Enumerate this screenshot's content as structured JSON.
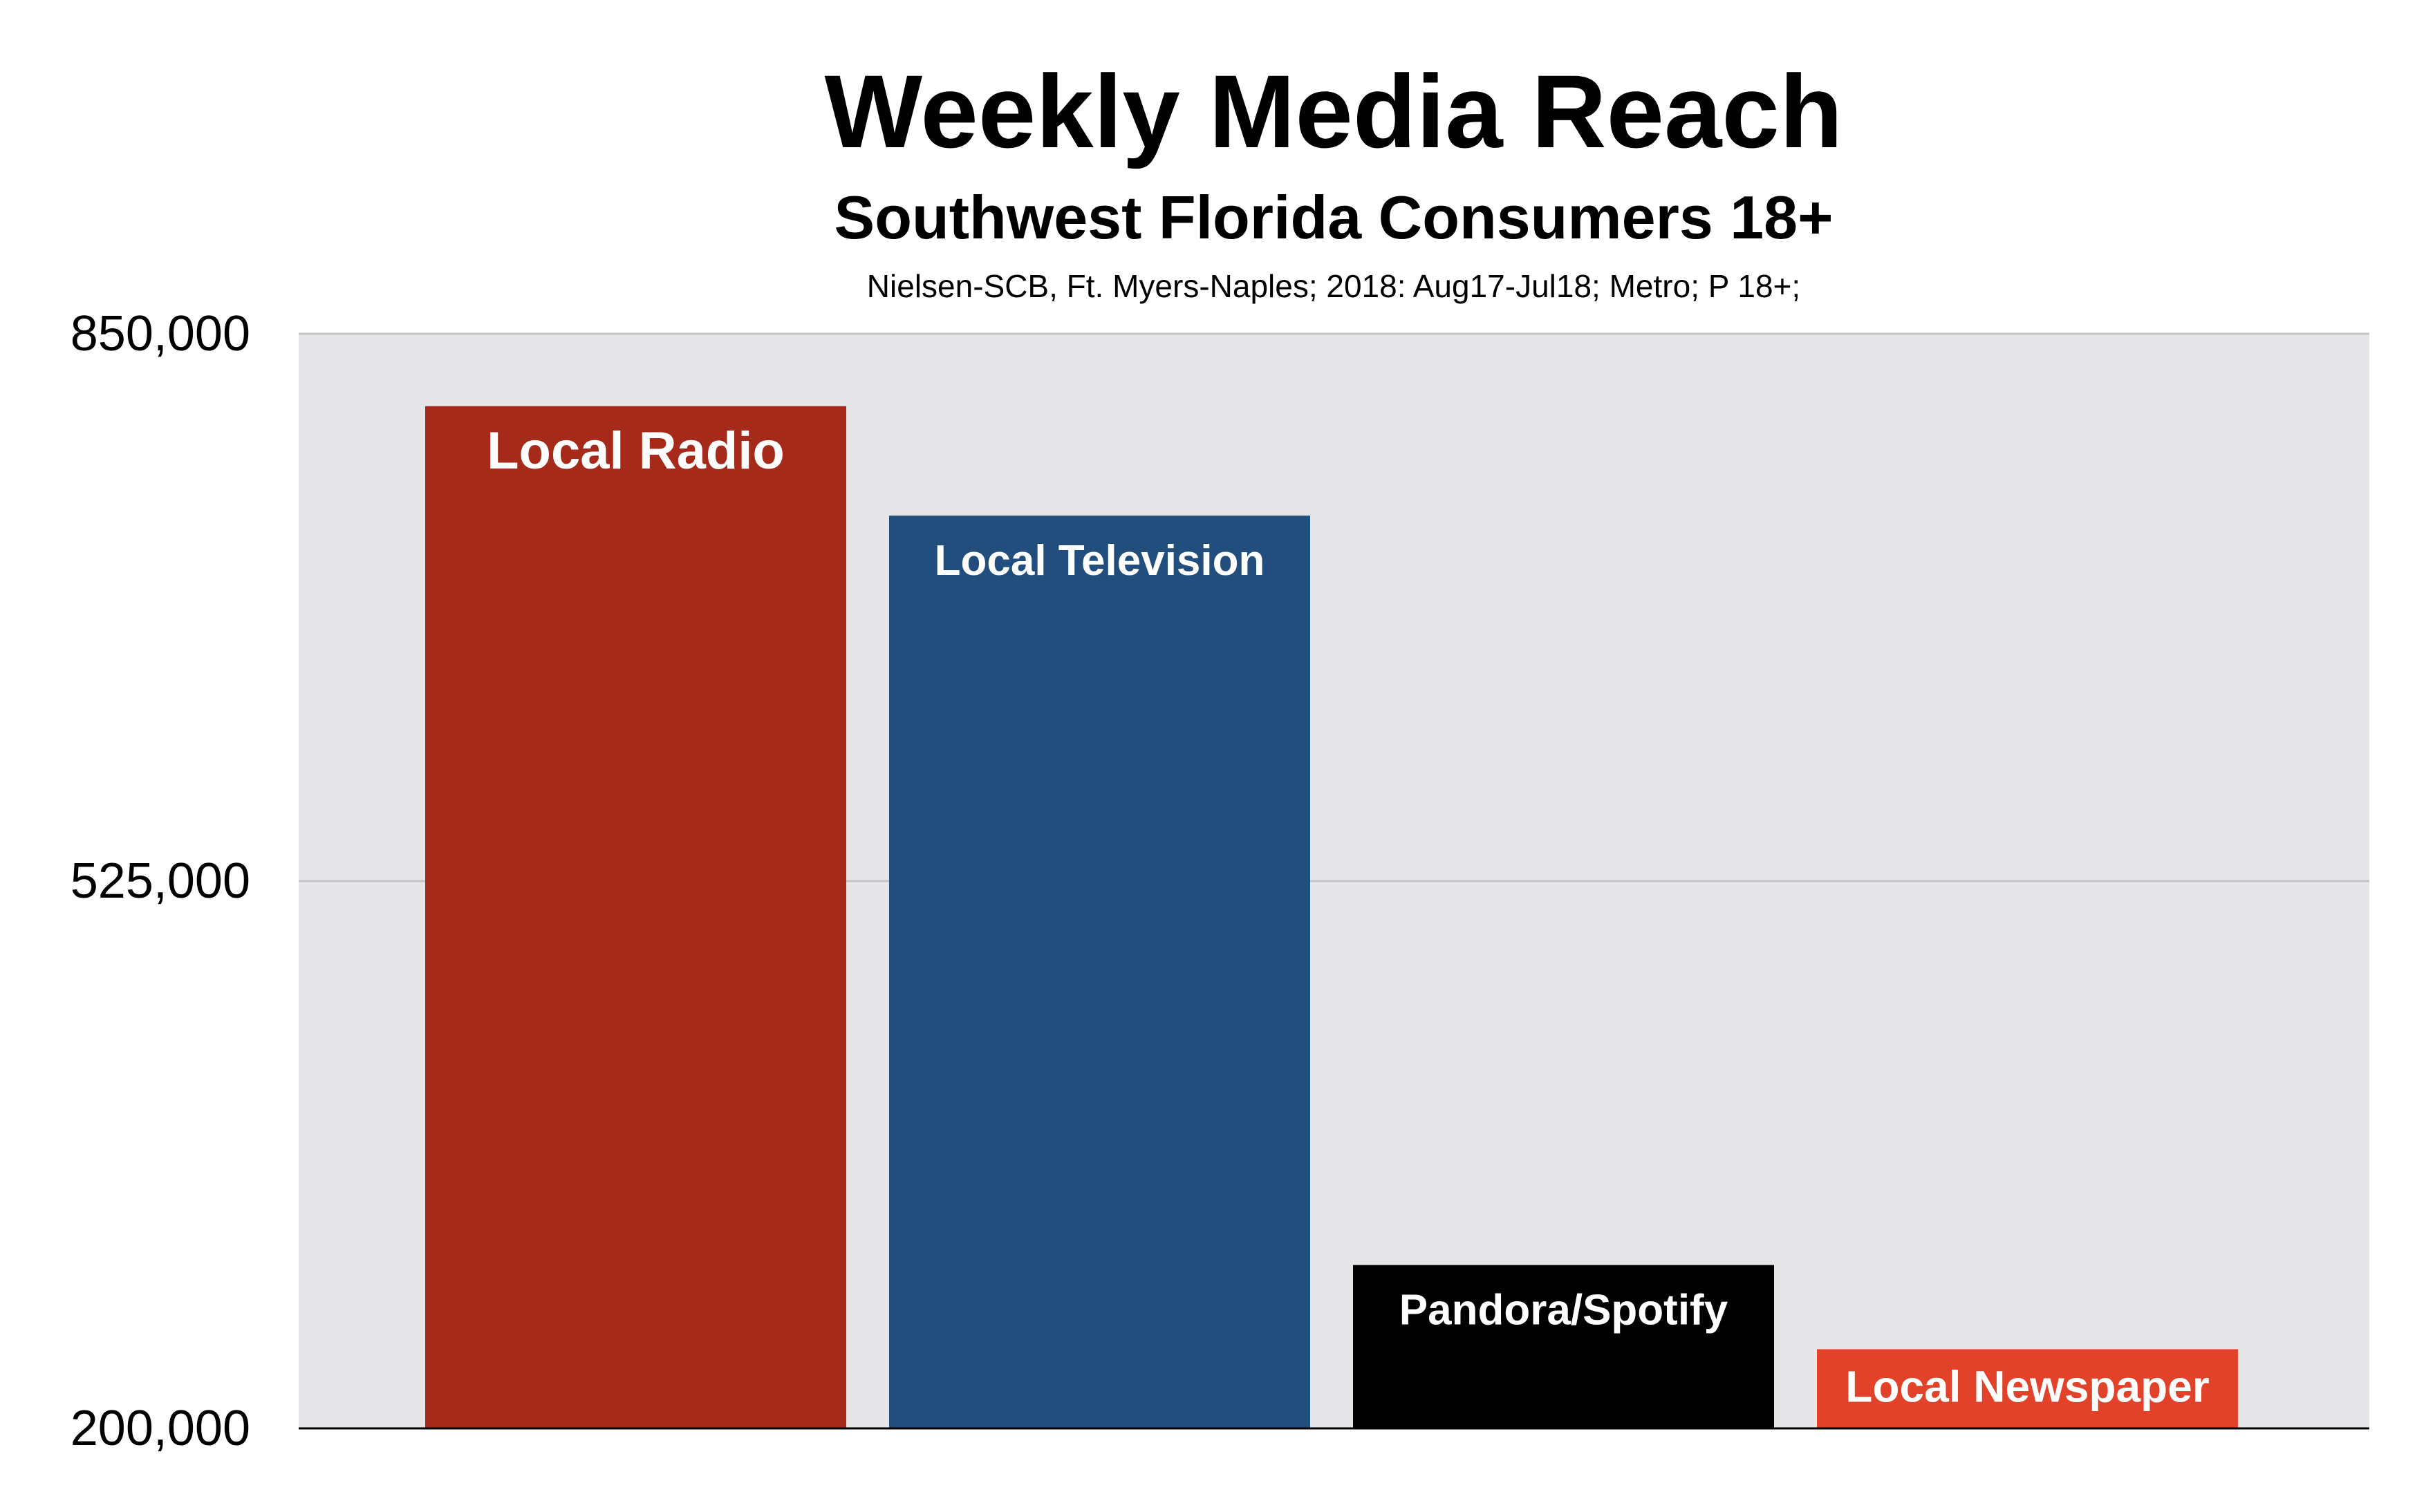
{
  "chart_data": {
    "type": "bar",
    "title": "Weekly Media Reach",
    "subtitle": "Southwest Florida Consumers 18+",
    "source": "Nielsen-SCB, Ft. Myers-Naples; 2018: Aug17-Jul18; Metro; P 18+;",
    "categories": [
      "Local Radio",
      "Local Television",
      "Pandora/Spotify",
      "Local Newspaper"
    ],
    "values": [
      807000,
      742000,
      297000,
      247000
    ],
    "colors": [
      "#a52a1a",
      "#224e7e",
      "#000000",
      "#e2422a"
    ],
    "ylim": [
      200000,
      850000
    ],
    "yticks": [
      200000,
      525000,
      850000
    ],
    "ytick_labels": [
      "200,000",
      "525,000",
      "850,000"
    ],
    "xlabel": "",
    "ylabel": "",
    "grid": true,
    "legend": "none",
    "plot_background": "#e6e5e8",
    "gridline_color": "#c4c4c6",
    "axis_color": "#000000"
  }
}
